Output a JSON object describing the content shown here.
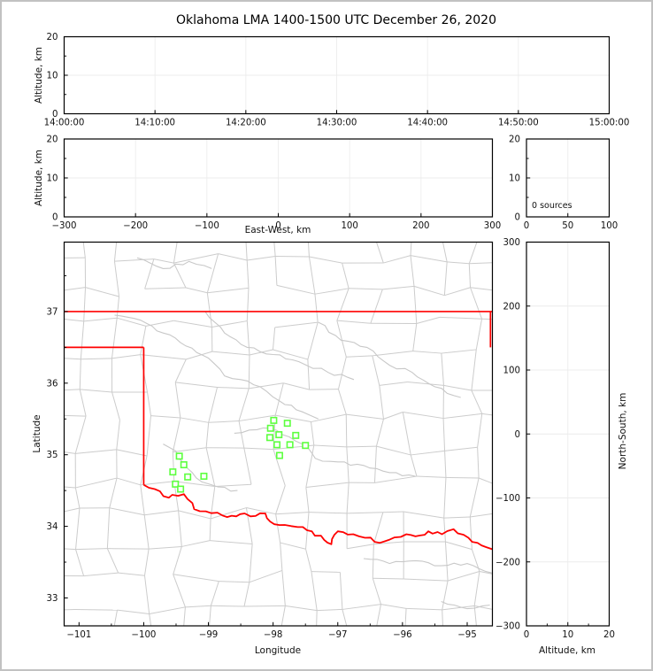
{
  "figure": {
    "title": "Oklahoma LMA 1400-1500 UTC December 26, 2020",
    "source_count": 0
  },
  "colors": {
    "state_border": "#ff0000",
    "county_border": "#cccccc",
    "river": "#c8c8c8",
    "station_marker": "#5dff3f",
    "grid": "#ececec",
    "axis": "#000000",
    "frame": "#c2c2c2"
  },
  "chart_data": [
    {
      "id": "time_altitude",
      "type": "scatter",
      "title": "Oklahoma LMA 1400-1500 UTC December 26, 2020",
      "xlabel": "",
      "ylabel": "Altitude, km",
      "xlim": [
        0,
        3600
      ],
      "ylim": [
        0,
        20
      ],
      "xtick_values": [
        0,
        600,
        1200,
        1800,
        2400,
        3000,
        3600
      ],
      "xtick_labels": [
        "14:00:00",
        "14:10:00",
        "14:20:00",
        "14:30:00",
        "14:40:00",
        "14:50:00",
        "15:00:00"
      ],
      "ytick_values": [
        0,
        10,
        20
      ],
      "ytick_labels": [
        "0",
        "10",
        "20"
      ],
      "yminor": [
        5,
        15
      ],
      "grid": true,
      "points": []
    },
    {
      "id": "ew_altitude",
      "type": "scatter",
      "xlabel": "East-West, km",
      "ylabel": "Altitude, km",
      "xlim": [
        -300,
        300
      ],
      "ylim": [
        0,
        20
      ],
      "xtick_values": [
        -300,
        -200,
        -100,
        0,
        100,
        200,
        300
      ],
      "xtick_labels": [
        "−300",
        "−200",
        "−100",
        "0",
        "100",
        "200",
        "300"
      ],
      "ytick_values": [
        0,
        10,
        20
      ],
      "ytick_labels": [
        "0",
        "10",
        "20"
      ],
      "yminor": [
        5,
        15
      ],
      "grid": true,
      "points": []
    },
    {
      "id": "altitude_histogram",
      "type": "line",
      "xlabel": "",
      "ylabel": "",
      "annotation": "0 sources",
      "xlim": [
        0,
        100
      ],
      "ylim": [
        0,
        20
      ],
      "xtick_values": [
        0,
        50,
        100
      ],
      "xtick_labels": [
        "0",
        "50",
        "100"
      ],
      "ytick_values": [
        0,
        10,
        20
      ],
      "ytick_labels": [
        "0",
        "10",
        "20"
      ],
      "yminor": [
        5,
        15
      ],
      "grid": true,
      "values": []
    },
    {
      "id": "plan_view_map",
      "type": "scatter",
      "xlabel": "Longitude",
      "ylabel": "Latitude",
      "xlim": [
        -101.23,
        -94.61
      ],
      "ylim": [
        32.61,
        37.97
      ],
      "xtick_values": [
        -101,
        -100,
        -99,
        -98,
        -97,
        -96,
        -95
      ],
      "xtick_labels": [
        "−101",
        "−100",
        "−99",
        "−98",
        "−97",
        "−96",
        "−95"
      ],
      "ytick_values": [
        33,
        34,
        35,
        36,
        37
      ],
      "ytick_labels": [
        "33",
        "34",
        "35",
        "36",
        "37"
      ],
      "xminor": [
        -100.5,
        -99.5,
        -98.5,
        -97.5,
        -96.5,
        -95.5
      ],
      "yminor": [
        33.5,
        34.5,
        35.5,
        36.5,
        37.5
      ],
      "grid": false,
      "points": [],
      "stations": [
        [
          -97.99,
          35.48
        ],
        [
          -97.78,
          35.44
        ],
        [
          -98.04,
          35.37
        ],
        [
          -97.91,
          35.28
        ],
        [
          -98.05,
          35.24
        ],
        [
          -97.65,
          35.27
        ],
        [
          -97.94,
          35.14
        ],
        [
          -97.74,
          35.14
        ],
        [
          -97.5,
          35.13
        ],
        [
          -97.9,
          34.99
        ],
        [
          -99.45,
          34.98
        ],
        [
          -99.38,
          34.86
        ],
        [
          -99.55,
          34.76
        ],
        [
          -99.32,
          34.69
        ],
        [
          -99.07,
          34.7
        ],
        [
          -99.51,
          34.59
        ],
        [
          -99.43,
          34.52
        ]
      ],
      "state_border_lines": [
        [
          [
            -101.23,
            37.0
          ],
          [
            -94.61,
            37.0
          ]
        ],
        [
          [
            -101.23,
            36.5
          ],
          [
            -100.0,
            36.5
          ]
        ],
        [
          [
            -100.0,
            36.5
          ],
          [
            -100.0,
            34.58
          ]
        ],
        [
          [
            -94.64,
            37.0
          ],
          [
            -94.64,
            36.5
          ]
        ]
      ],
      "red_river": [
        [
          -100.0,
          34.58
        ],
        [
          -99.83,
          34.52
        ],
        [
          -99.61,
          34.4
        ],
        [
          -99.56,
          34.44
        ],
        [
          -99.38,
          34.45
        ],
        [
          -99.22,
          34.24
        ],
        [
          -99.04,
          34.21
        ],
        [
          -98.78,
          34.15
        ],
        [
          -98.57,
          34.14
        ],
        [
          -98.44,
          34.18
        ],
        [
          -98.35,
          34.14
        ],
        [
          -98.12,
          34.18
        ],
        [
          -97.98,
          34.03
        ],
        [
          -97.82,
          34.02
        ],
        [
          -97.62,
          33.99
        ],
        [
          -97.4,
          33.93
        ],
        [
          -97.21,
          33.81
        ],
        [
          -97.1,
          33.75
        ],
        [
          -97.0,
          33.93
        ],
        [
          -96.76,
          33.89
        ],
        [
          -96.58,
          33.84
        ],
        [
          -96.35,
          33.77
        ],
        [
          -96.21,
          33.81
        ],
        [
          -95.94,
          33.89
        ],
        [
          -95.8,
          33.86
        ],
        [
          -95.6,
          33.93
        ],
        [
          -95.39,
          33.89
        ],
        [
          -95.21,
          33.96
        ],
        [
          -94.98,
          33.84
        ],
        [
          -94.84,
          33.77
        ],
        [
          -94.71,
          33.71
        ],
        [
          -94.61,
          33.68
        ]
      ],
      "rivers": [
        [
          [
            -100.45,
            36.95
          ],
          [
            -100.05,
            36.88
          ],
          [
            -99.7,
            36.7
          ],
          [
            -99.35,
            36.52
          ],
          [
            -99.0,
            36.35
          ],
          [
            -98.75,
            36.1
          ],
          [
            -98.5,
            36.05
          ],
          [
            -98.2,
            35.95
          ],
          [
            -97.9,
            35.75
          ],
          [
            -97.55,
            35.6
          ],
          [
            -97.3,
            35.5
          ]
        ],
        [
          [
            -99.05,
            37.0
          ],
          [
            -98.75,
            36.7
          ],
          [
            -98.4,
            36.5
          ],
          [
            -98.0,
            36.4
          ],
          [
            -97.6,
            36.3
          ],
          [
            -97.15,
            36.15
          ],
          [
            -96.75,
            36.05
          ]
        ],
        [
          [
            -97.3,
            36.85
          ],
          [
            -96.95,
            36.6
          ],
          [
            -96.55,
            36.5
          ],
          [
            -96.2,
            36.25
          ],
          [
            -95.85,
            36.15
          ],
          [
            -95.5,
            35.95
          ],
          [
            -95.1,
            35.8
          ]
        ],
        [
          [
            -98.6,
            35.3
          ],
          [
            -98.25,
            35.35
          ],
          [
            -98.05,
            35.37
          ],
          [
            -97.75,
            35.25
          ],
          [
            -97.55,
            35.15
          ],
          [
            -97.35,
            34.95
          ],
          [
            -97.0,
            34.9
          ],
          [
            -96.6,
            34.85
          ],
          [
            -96.2,
            34.75
          ],
          [
            -95.8,
            34.7
          ]
        ],
        [
          [
            -99.7,
            35.15
          ],
          [
            -99.5,
            35.05
          ],
          [
            -99.4,
            34.9
          ],
          [
            -99.25,
            34.75
          ],
          [
            -99.1,
            34.62
          ],
          [
            -98.85,
            34.55
          ],
          [
            -98.55,
            34.5
          ]
        ],
        [
          [
            -96.6,
            33.55
          ],
          [
            -96.2,
            33.48
          ],
          [
            -95.8,
            33.52
          ],
          [
            -95.4,
            33.45
          ],
          [
            -95.0,
            33.48
          ],
          [
            -94.62,
            33.35
          ]
        ],
        [
          [
            -100.1,
            37.75
          ],
          [
            -99.7,
            37.6
          ],
          [
            -99.3,
            37.7
          ],
          [
            -98.95,
            37.6
          ]
        ],
        [
          [
            -95.4,
            32.95
          ],
          [
            -95.0,
            32.85
          ],
          [
            -94.65,
            32.9
          ]
        ]
      ]
    },
    {
      "id": "ns_altitude",
      "type": "scatter",
      "xlabel": "Altitude, km",
      "ylabel": "North-South, km",
      "xlim": [
        0,
        20
      ],
      "ylim": [
        -300,
        300
      ],
      "xtick_values": [
        0,
        10,
        20
      ],
      "xtick_labels": [
        "0",
        "10",
        "20"
      ],
      "xminor": [
        5,
        15
      ],
      "ytick_values": [
        -300,
        -200,
        -100,
        0,
        100,
        200,
        300
      ],
      "ytick_labels": [
        "−300",
        "−200",
        "−100",
        "0",
        "100",
        "200",
        "300"
      ],
      "grid": true,
      "points": []
    }
  ]
}
